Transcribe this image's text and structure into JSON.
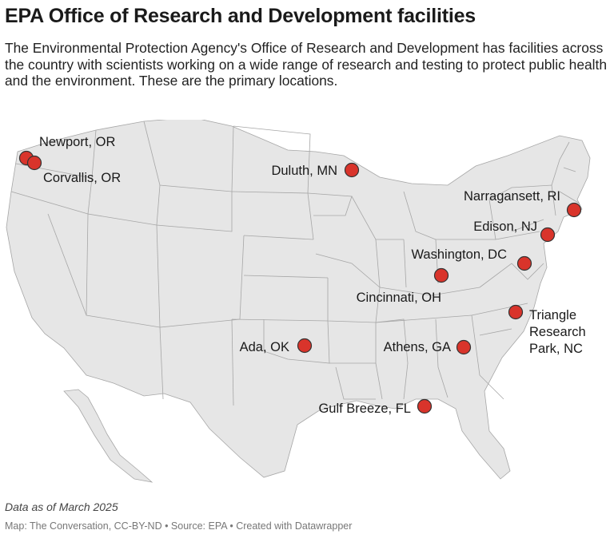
{
  "title": "EPA Office of Research and Development facilities",
  "description": "The Environmental Protection Agency's Office of Research and Development has facilities across the country with scientists working on a wide range of research and testing to protect public health and the environment. These are the primary locations.",
  "colors": {
    "marker": "#d9342b",
    "land": "#e6e6e6",
    "border": "#a6a6a6"
  },
  "locations": [
    {
      "id": "newport",
      "lines": [
        "Newport, OR"
      ]
    },
    {
      "id": "corvallis",
      "lines": [
        "Corvallis, OR"
      ]
    },
    {
      "id": "duluth",
      "lines": [
        "Duluth, MN"
      ]
    },
    {
      "id": "narragansett",
      "lines": [
        "Narragansett, RI"
      ]
    },
    {
      "id": "edison",
      "lines": [
        "Edison, NJ"
      ]
    },
    {
      "id": "washington",
      "lines": [
        "Washington, DC"
      ]
    },
    {
      "id": "cincinnati",
      "lines": [
        "Cincinnati, OH"
      ]
    },
    {
      "id": "triangle",
      "lines": [
        "Triangle",
        "Research",
        "Park, NC"
      ]
    },
    {
      "id": "ada",
      "lines": [
        "Ada, OK"
      ]
    },
    {
      "id": "athens",
      "lines": [
        "Athens, GA"
      ]
    },
    {
      "id": "gulfbreeze",
      "lines": [
        "Gulf Breeze, FL"
      ]
    }
  ],
  "note": "Data as of March 2025",
  "byline": "Map: The Conversation, CC-BY-ND • Source: EPA • Created with Datawrapper"
}
